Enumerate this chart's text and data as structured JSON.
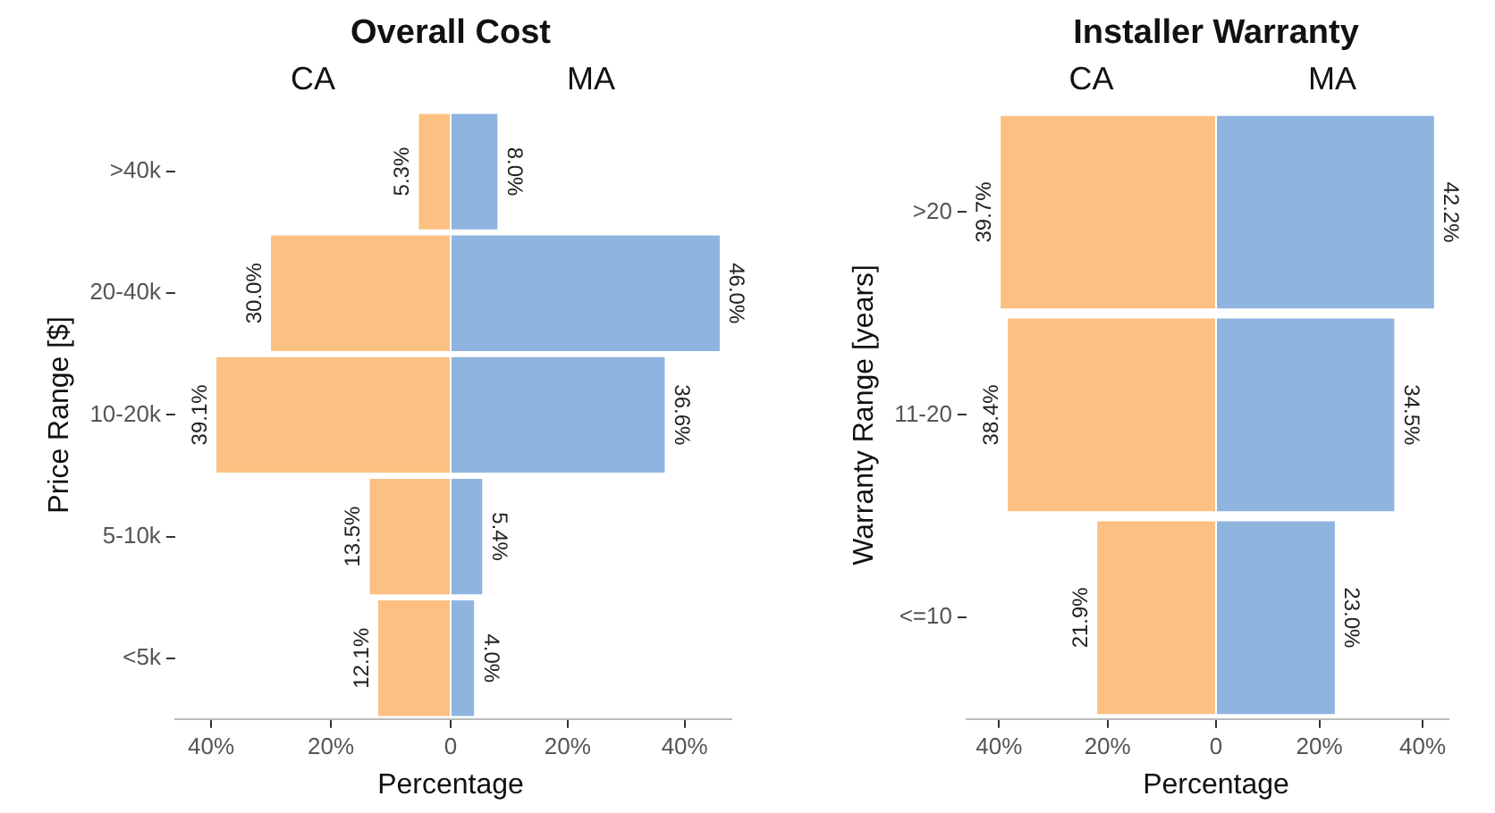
{
  "chart_data": [
    {
      "type": "bar",
      "title": "Overall Cost",
      "subtitle": "CA",
      "xlabel": "Percentage",
      "ylabel": "Price Range [$]",
      "orientation": "horizontal",
      "grid": false,
      "categories": [
        ">40k",
        "20-40k",
        "10-20k",
        "5-10k",
        "<5k"
      ],
      "xlim": [
        46,
        0
      ],
      "xticks": [
        {
          "value": 40,
          "label": "40%"
        },
        {
          "value": 20,
          "label": "20%"
        },
        0
      ],
      "series": [
        {
          "color": "#fcc083",
          "values": [
            5.3,
            30.0,
            39.1,
            13.5,
            12.1
          ],
          "value_labels": [
            "5.3%",
            "30.0%",
            "39.1%",
            "13.5%",
            "12.1%"
          ]
        }
      ]
    },
    {
      "type": "bar",
      "subtitle": "MA",
      "orientation": "horizontal",
      "grid": false,
      "tick_labels": "x",
      "categories": [
        null,
        null,
        null,
        null,
        null
      ],
      "xlim": [
        0,
        48
      ],
      "xticks": [
        {
          "value": 0,
          "label": null
        },
        {
          "value": 20,
          "label": "20%"
        },
        {
          "value": 40,
          "label": "40%"
        }
      ],
      "series": [
        {
          "color": "#8fb4e0",
          "values": [
            8.0,
            46.0,
            36.6,
            5.4,
            4.0
          ],
          "value_labels": [
            "8.0%",
            "46.0%",
            "36.6%",
            "5.4%",
            "4.0%"
          ]
        }
      ]
    },
    {
      "type": "bar",
      "title": "Installer Warranty",
      "subtitle": "CA",
      "xlabel": "Percentage",
      "ylabel": "Warranty Range [years]",
      "orientation": "horizontal",
      "grid": false,
      "categories": [
        ">20",
        "11-20",
        "<=10"
      ],
      "xlim": [
        46,
        0
      ],
      "xticks": [
        {
          "value": 40,
          "label": "40%"
        },
        {
          "value": 20,
          "label": "20%"
        },
        0
      ],
      "series": [
        {
          "color": "#fcc083",
          "values": [
            39.7,
            38.4,
            21.9
          ],
          "value_labels": [
            "39.7%",
            "38.4%",
            "21.9%"
          ]
        }
      ]
    },
    {
      "type": "bar",
      "subtitle": "MA",
      "orientation": "horizontal",
      "grid": false,
      "tick_labels": "x",
      "categories": [
        null,
        null,
        null
      ],
      "xlim": [
        0,
        45
      ],
      "xticks": [
        {
          "value": 0,
          "label": null
        },
        {
          "value": 20,
          "label": "20%"
        },
        {
          "value": 40,
          "label": "40%"
        }
      ],
      "series": [
        {
          "color": "#8fb4e0",
          "values": [
            42.2,
            34.5,
            23.0
          ],
          "value_labels": [
            "42.2%",
            "34.5%",
            "23.0%"
          ]
        }
      ]
    }
  ]
}
